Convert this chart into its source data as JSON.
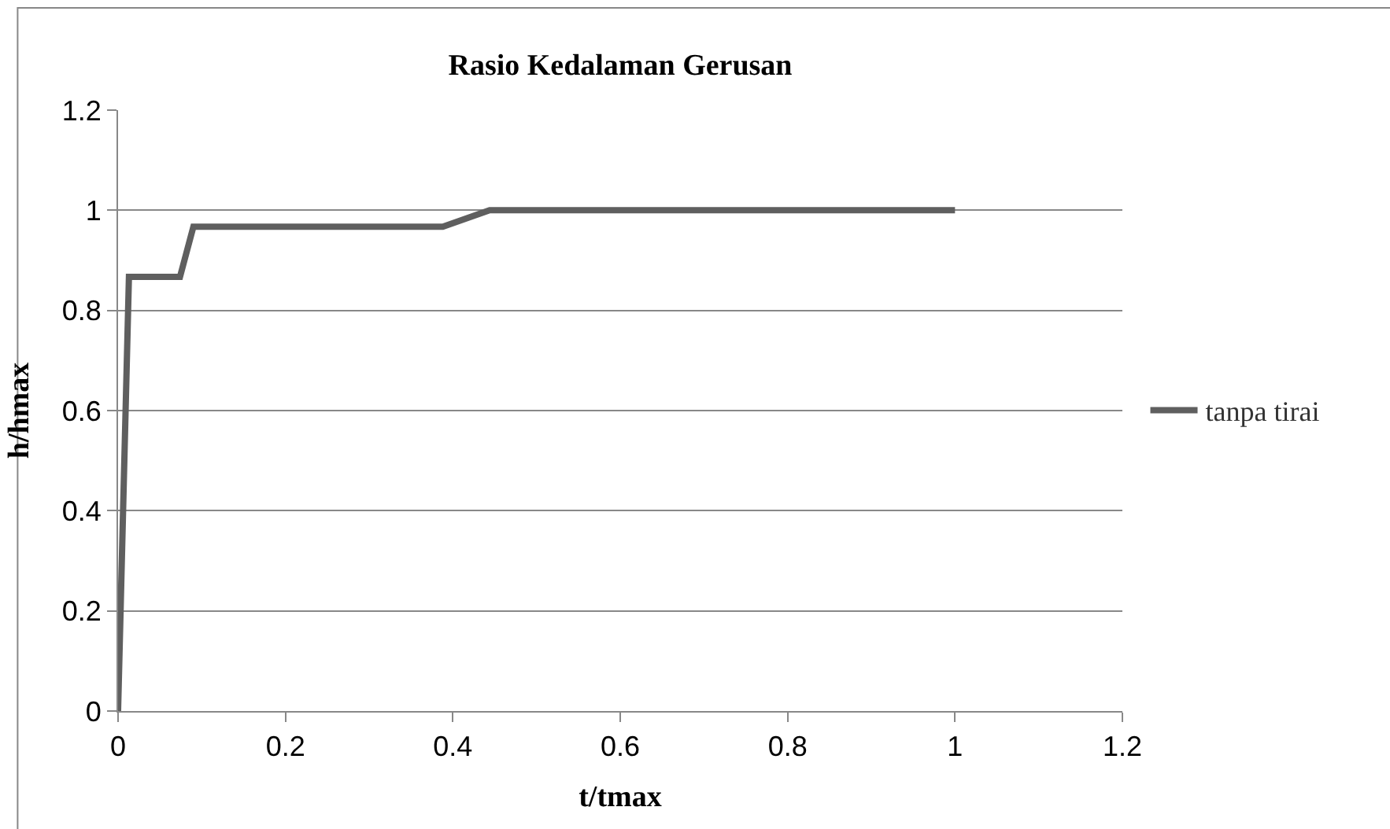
{
  "chart_data": {
    "type": "line",
    "title": "Rasio Kedalaman Gerusan",
    "xlabel": "t/tmax",
    "ylabel": "h/hmax",
    "x": [
      0,
      0.013,
      0.074,
      0.09,
      0.388,
      0.444,
      1
    ],
    "series": [
      {
        "name": "tanpa tirai",
        "color": "#5f5f5f",
        "values": [
          0,
          0.867,
          0.867,
          0.967,
          0.967,
          1,
          1
        ]
      }
    ],
    "xlim": [
      0,
      1.2
    ],
    "xticks": [
      0,
      0.2,
      0.4,
      0.6,
      0.8,
      1,
      1.2
    ],
    "ylim": [
      0,
      1.2
    ],
    "yticks": [
      0,
      0.2,
      0.4,
      0.6,
      0.8,
      1,
      1.2
    ],
    "grid": "y",
    "legend": "right",
    "marker": "none",
    "line_style": "solid"
  }
}
